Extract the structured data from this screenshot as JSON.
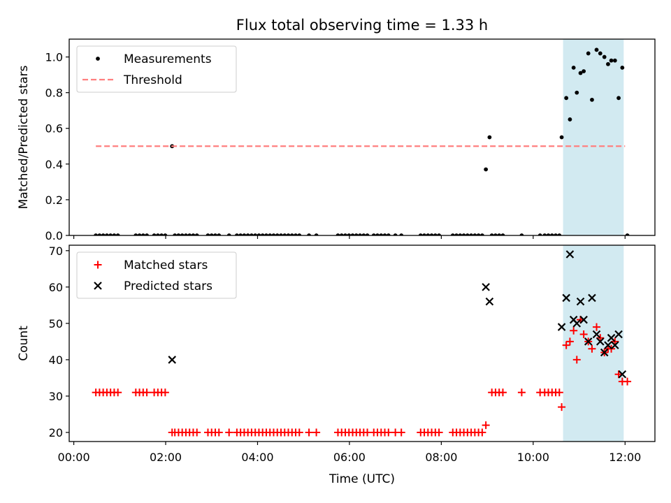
{
  "chart_data": [
    {
      "type": "scatter",
      "title": "Flux total observing time = 1.33 h",
      "xlabel": "",
      "ylabel": "Matched/Predicted stars",
      "xlim": [
        -0.1,
        12.65
      ],
      "ylim": [
        0,
        1.1
      ],
      "yticks": [
        "0.0",
        "0.2",
        "0.4",
        "0.6",
        "0.8",
        "1.0"
      ],
      "grid": false,
      "legend_position": "top-left",
      "highlight_span": {
        "x": [
          10.65,
          11.97
        ],
        "color": "#add8e6"
      },
      "series": [
        {
          "name": "Measurements",
          "style": "dot",
          "color": "#000000",
          "points": [
            [
              0.48,
              0
            ],
            [
              0.56,
              0
            ],
            [
              0.64,
              0
            ],
            [
              0.72,
              0
            ],
            [
              0.8,
              0
            ],
            [
              0.88,
              0
            ],
            [
              0.96,
              0
            ],
            [
              1.35,
              0
            ],
            [
              1.43,
              0
            ],
            [
              1.51,
              0
            ],
            [
              1.59,
              0
            ],
            [
              1.75,
              0
            ],
            [
              1.83,
              0
            ],
            [
              1.91,
              0
            ],
            [
              1.99,
              0
            ],
            [
              2.14,
              0.5
            ],
            [
              2.2,
              0
            ],
            [
              2.28,
              0
            ],
            [
              2.36,
              0
            ],
            [
              2.44,
              0
            ],
            [
              2.52,
              0
            ],
            [
              2.6,
              0
            ],
            [
              2.68,
              0
            ],
            [
              2.92,
              0
            ],
            [
              3.0,
              0
            ],
            [
              3.08,
              0
            ],
            [
              3.16,
              0
            ],
            [
              3.38,
              0
            ],
            [
              3.55,
              0
            ],
            [
              3.63,
              0
            ],
            [
              3.71,
              0
            ],
            [
              3.79,
              0
            ],
            [
              3.87,
              0
            ],
            [
              3.95,
              0
            ],
            [
              4.03,
              0
            ],
            [
              4.11,
              0
            ],
            [
              4.19,
              0
            ],
            [
              4.27,
              0
            ],
            [
              4.35,
              0
            ],
            [
              4.43,
              0
            ],
            [
              4.51,
              0
            ],
            [
              4.59,
              0
            ],
            [
              4.67,
              0
            ],
            [
              4.75,
              0
            ],
            [
              4.83,
              0
            ],
            [
              4.91,
              0
            ],
            [
              5.12,
              0
            ],
            [
              5.28,
              0
            ],
            [
              5.75,
              0
            ],
            [
              5.83,
              0
            ],
            [
              5.91,
              0
            ],
            [
              5.99,
              0
            ],
            [
              6.07,
              0
            ],
            [
              6.15,
              0
            ],
            [
              6.23,
              0
            ],
            [
              6.31,
              0
            ],
            [
              6.39,
              0
            ],
            [
              6.53,
              0
            ],
            [
              6.61,
              0
            ],
            [
              6.69,
              0
            ],
            [
              6.77,
              0
            ],
            [
              6.85,
              0
            ],
            [
              7.0,
              0
            ],
            [
              7.13,
              0
            ],
            [
              7.55,
              0
            ],
            [
              7.63,
              0
            ],
            [
              7.71,
              0
            ],
            [
              7.79,
              0
            ],
            [
              7.87,
              0
            ],
            [
              7.95,
              0
            ],
            [
              8.25,
              0
            ],
            [
              8.33,
              0
            ],
            [
              8.41,
              0
            ],
            [
              8.49,
              0
            ],
            [
              8.57,
              0
            ],
            [
              8.65,
              0
            ],
            [
              8.73,
              0
            ],
            [
              8.81,
              0
            ],
            [
              8.89,
              0
            ],
            [
              8.97,
              0.37
            ],
            [
              9.05,
              0.55
            ],
            [
              9.1,
              0
            ],
            [
              9.18,
              0
            ],
            [
              9.26,
              0
            ],
            [
              9.34,
              0
            ],
            [
              9.75,
              0
            ],
            [
              10.15,
              0
            ],
            [
              10.25,
              0
            ],
            [
              10.33,
              0
            ],
            [
              10.41,
              0
            ],
            [
              10.49,
              0
            ],
            [
              10.57,
              0
            ],
            [
              10.62,
              0.55
            ],
            [
              10.72,
              0.77
            ],
            [
              10.8,
              0.65
            ],
            [
              10.88,
              0.94
            ],
            [
              10.95,
              0.8
            ],
            [
              11.03,
              0.91
            ],
            [
              11.1,
              0.92
            ],
            [
              11.2,
              1.02
            ],
            [
              11.28,
              0.76
            ],
            [
              11.38,
              1.04
            ],
            [
              11.46,
              1.02
            ],
            [
              11.55,
              1.0
            ],
            [
              11.63,
              0.96
            ],
            [
              11.7,
              0.98
            ],
            [
              11.78,
              0.98
            ],
            [
              11.86,
              0.77
            ],
            [
              11.94,
              0.94
            ],
            [
              12.05,
              0
            ]
          ]
        },
        {
          "name": "Threshold",
          "style": "dashed-line",
          "color": "#ff7f7f",
          "points": [
            [
              0.48,
              0.5
            ],
            [
              12.0,
              0.5
            ]
          ]
        }
      ]
    },
    {
      "type": "scatter",
      "title": "",
      "xlabel": "Time (UTC)",
      "ylabel": "Count",
      "xlim": [
        -0.1,
        12.65
      ],
      "ylim": [
        17.5,
        71.5
      ],
      "yticks": [
        "20",
        "30",
        "40",
        "50",
        "60",
        "70"
      ],
      "xtick_values": [
        0,
        2,
        4,
        6,
        8,
        10,
        12
      ],
      "xticks": [
        "00:00",
        "02:00",
        "04:00",
        "06:00",
        "08:00",
        "10:00",
        "12:00"
      ],
      "grid": false,
      "legend_position": "top-left",
      "highlight_span": {
        "x": [
          10.65,
          11.97
        ],
        "color": "#add8e6"
      },
      "series": [
        {
          "name": "Matched stars",
          "style": "plus",
          "color": "#ff0000",
          "points": [
            [
              0.48,
              31
            ],
            [
              0.56,
              31
            ],
            [
              0.64,
              31
            ],
            [
              0.72,
              31
            ],
            [
              0.8,
              31
            ],
            [
              0.88,
              31
            ],
            [
              0.96,
              31
            ],
            [
              1.35,
              31
            ],
            [
              1.43,
              31
            ],
            [
              1.51,
              31
            ],
            [
              1.59,
              31
            ],
            [
              1.75,
              31
            ],
            [
              1.83,
              31
            ],
            [
              1.91,
              31
            ],
            [
              1.99,
              31
            ],
            [
              2.14,
              20
            ],
            [
              2.2,
              20
            ],
            [
              2.28,
              20
            ],
            [
              2.36,
              20
            ],
            [
              2.44,
              20
            ],
            [
              2.52,
              20
            ],
            [
              2.6,
              20
            ],
            [
              2.68,
              20
            ],
            [
              2.92,
              20
            ],
            [
              3.0,
              20
            ],
            [
              3.08,
              20
            ],
            [
              3.16,
              20
            ],
            [
              3.38,
              20
            ],
            [
              3.55,
              20
            ],
            [
              3.63,
              20
            ],
            [
              3.71,
              20
            ],
            [
              3.79,
              20
            ],
            [
              3.87,
              20
            ],
            [
              3.95,
              20
            ],
            [
              4.03,
              20
            ],
            [
              4.11,
              20
            ],
            [
              4.19,
              20
            ],
            [
              4.27,
              20
            ],
            [
              4.35,
              20
            ],
            [
              4.43,
              20
            ],
            [
              4.51,
              20
            ],
            [
              4.59,
              20
            ],
            [
              4.67,
              20
            ],
            [
              4.75,
              20
            ],
            [
              4.83,
              20
            ],
            [
              4.91,
              20
            ],
            [
              5.12,
              20
            ],
            [
              5.28,
              20
            ],
            [
              5.75,
              20
            ],
            [
              5.83,
              20
            ],
            [
              5.91,
              20
            ],
            [
              5.99,
              20
            ],
            [
              6.07,
              20
            ],
            [
              6.15,
              20
            ],
            [
              6.23,
              20
            ],
            [
              6.31,
              20
            ],
            [
              6.39,
              20
            ],
            [
              6.53,
              20
            ],
            [
              6.61,
              20
            ],
            [
              6.69,
              20
            ],
            [
              6.77,
              20
            ],
            [
              6.85,
              20
            ],
            [
              7.0,
              20
            ],
            [
              7.13,
              20
            ],
            [
              7.55,
              20
            ],
            [
              7.63,
              20
            ],
            [
              7.71,
              20
            ],
            [
              7.79,
              20
            ],
            [
              7.87,
              20
            ],
            [
              7.95,
              20
            ],
            [
              8.25,
              20
            ],
            [
              8.33,
              20
            ],
            [
              8.41,
              20
            ],
            [
              8.49,
              20
            ],
            [
              8.57,
              20
            ],
            [
              8.65,
              20
            ],
            [
              8.73,
              20
            ],
            [
              8.81,
              20
            ],
            [
              8.89,
              20
            ],
            [
              8.97,
              22
            ],
            [
              9.1,
              31
            ],
            [
              9.18,
              31
            ],
            [
              9.26,
              31
            ],
            [
              9.34,
              31
            ],
            [
              9.75,
              31
            ],
            [
              10.15,
              31
            ],
            [
              10.25,
              31
            ],
            [
              10.33,
              31
            ],
            [
              10.41,
              31
            ],
            [
              10.49,
              31
            ],
            [
              10.57,
              31
            ],
            [
              10.62,
              27
            ],
            [
              10.72,
              44
            ],
            [
              10.8,
              45
            ],
            [
              10.88,
              48
            ],
            [
              10.95,
              40
            ],
            [
              11.03,
              51
            ],
            [
              11.1,
              47
            ],
            [
              11.2,
              45
            ],
            [
              11.28,
              43
            ],
            [
              11.38,
              49
            ],
            [
              11.46,
              46
            ],
            [
              11.55,
              42
            ],
            [
              11.63,
              43
            ],
            [
              11.7,
              43
            ],
            [
              11.78,
              45
            ],
            [
              11.86,
              36
            ],
            [
              11.94,
              34
            ],
            [
              12.05,
              34
            ]
          ]
        },
        {
          "name": "Predicted stars",
          "style": "x",
          "color": "#000000",
          "points": [
            [
              2.14,
              40
            ],
            [
              8.97,
              60
            ],
            [
              9.05,
              56
            ],
            [
              10.62,
              49
            ],
            [
              10.72,
              57
            ],
            [
              10.8,
              69
            ],
            [
              10.88,
              51
            ],
            [
              10.95,
              50
            ],
            [
              11.03,
              56
            ],
            [
              11.1,
              51
            ],
            [
              11.2,
              45
            ],
            [
              11.28,
              57
            ],
            [
              11.38,
              47
            ],
            [
              11.46,
              45
            ],
            [
              11.55,
              42
            ],
            [
              11.63,
              44
            ],
            [
              11.7,
              46
            ],
            [
              11.78,
              44
            ],
            [
              11.86,
              47
            ],
            [
              11.94,
              36
            ]
          ]
        }
      ]
    }
  ]
}
